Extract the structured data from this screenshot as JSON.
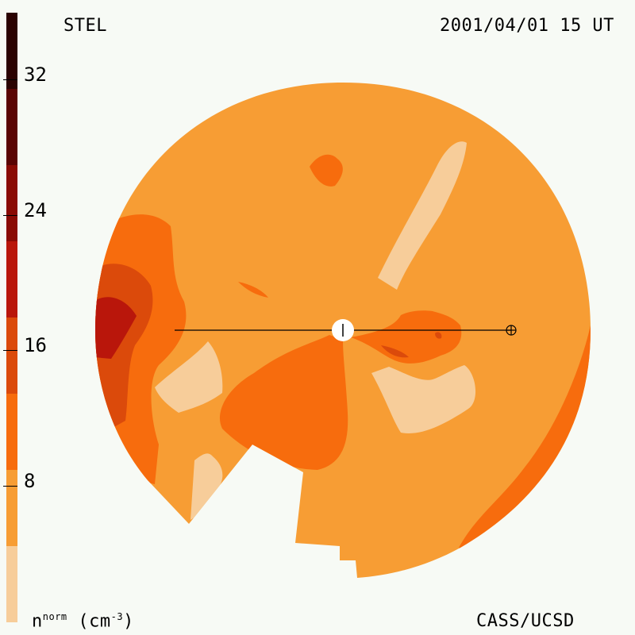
{
  "header": {
    "left_title": "STEL",
    "right_title": "2001/04/01 15 UT"
  },
  "footer": {
    "unit_base": "n",
    "unit_sup": "norm",
    "unit_paren": "(cm",
    "unit_exp": "-3",
    "unit_close": ")",
    "credit": "CASS/UCSD"
  },
  "colorbar": {
    "levels": [
      "#f7cd9a",
      "#f79d34",
      "#f76c0d",
      "#db4a0b",
      "#b9160b",
      "#8a0b05",
      "#5a0404",
      "#2b0202"
    ],
    "tick_labels": [
      "32",
      "24",
      "16",
      "8"
    ],
    "tick_values": [
      32,
      24,
      16,
      8
    ],
    "range": [
      0,
      36
    ]
  },
  "map": {
    "colors": {
      "pale": "#f7cd9a",
      "base": "#f79d34",
      "mid": "#f76c0d",
      "high": "#db4a0b",
      "red": "#b9160b",
      "dark": "#8a0b05",
      "sun_fill": "#ffffff",
      "line": "#000000"
    },
    "sun_icon": "sun-marker",
    "earth_icon": "earth-symbol"
  }
}
